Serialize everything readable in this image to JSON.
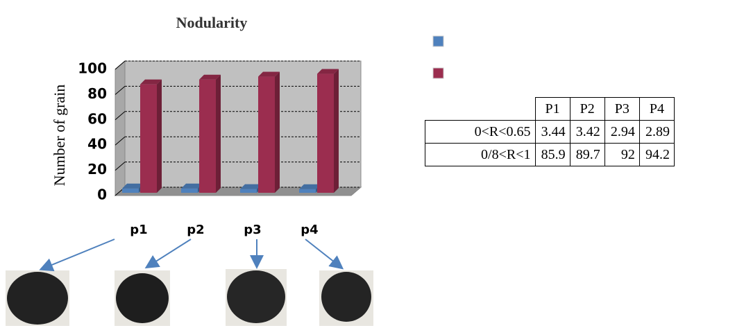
{
  "chart_data": {
    "type": "bar",
    "title": "Nodularity",
    "y_label": "Number of grain",
    "categories": [
      "p1",
      "p2",
      "p3",
      "p4"
    ],
    "series": [
      {
        "name": "0<R<0.65",
        "color": "#4f81bd",
        "values": [
          3.44,
          3.42,
          2.94,
          2.89
        ]
      },
      {
        "name": "0/8<R<1",
        "color": "#9b2d4f",
        "values": [
          85.9,
          89.7,
          92,
          94.2
        ]
      }
    ],
    "ylim": [
      0,
      100
    ],
    "yticks": [
      0,
      20,
      40,
      60,
      80,
      100
    ],
    "grid": true
  },
  "table": {
    "header": [
      "P1",
      "P2",
      "P3",
      "P4"
    ]
  }
}
